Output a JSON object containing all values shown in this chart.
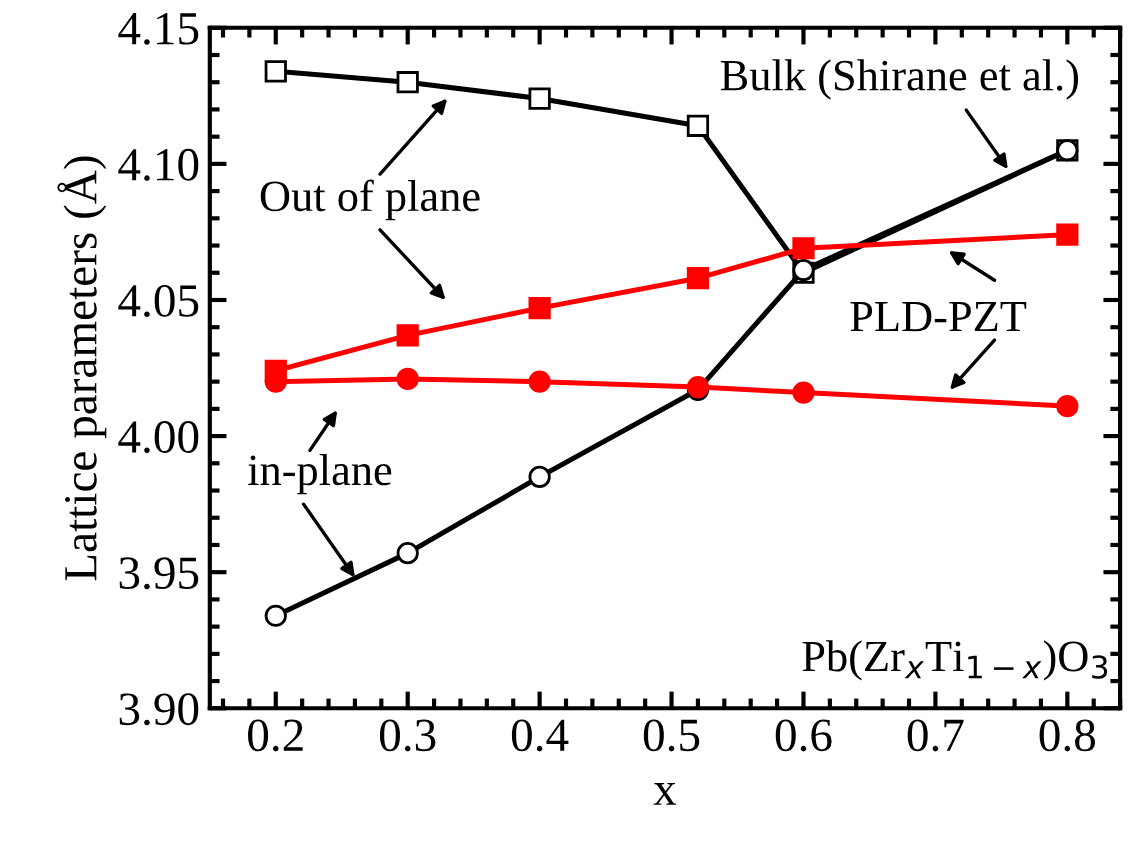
{
  "chart_data": {
    "type": "line",
    "xlabel": "x",
    "ylabel": "Lattice parameters (Å)",
    "x": [
      0.2,
      0.3,
      0.4,
      0.52,
      0.6,
      0.8
    ],
    "series": [
      {
        "color": "#000000",
        "marker": "square",
        "values": [
          4.134,
          4.13,
          4.124,
          4.114,
          4.06,
          4.105
        ]
      },
      {
        "color": "#000000",
        "marker": "circle",
        "values": [
          3.934,
          3.957,
          3.985,
          4.017,
          4.061,
          4.105
        ]
      },
      {
        "color": "#ff0000",
        "marker": "square",
        "values": [
          4.024,
          4.037,
          4.047,
          4.058,
          4.069,
          4.074
        ]
      },
      {
        "color": "#ff0000",
        "marker": "circle",
        "values": [
          4.02,
          4.021,
          4.02,
          4.018,
          4.016,
          4.011
        ]
      }
    ],
    "annotations": [
      {
        "text": "Out of plane",
        "x": 0.33,
        "y": 4.124
      },
      {
        "text": "in-plane",
        "x": 0.26,
        "y": 3.948
      },
      {
        "text": "Bulk (Shirane et al.)",
        "x": 0.755,
        "y": 4.098
      },
      {
        "text": "PLD-PZT",
        "x": 0.71,
        "y": 4.068
      },
      "Pb(Zr$_{x}$Ti$_{1−x}$)O$_{3}$"
    ],
    "xlim": [
      0.15,
      0.84
    ],
    "ylim": [
      3.9,
      4.15
    ],
    "xticks": [
      0.2,
      0.3,
      0.4,
      0.5,
      0.6,
      0.7,
      0.8
    ],
    "yticks": [
      {
        "value": 3.9,
        "label": "3.90"
      },
      {
        "value": 3.95,
        "label": "3.95"
      },
      {
        "value": 4.0,
        "label": "4.00"
      },
      {
        "value": 4.05,
        "label": "4.05"
      },
      {
        "value": 4.1,
        "label": "4.10"
      },
      {
        "value": 4.15,
        "label": "4.15"
      }
    ],
    "grid": false,
    "legend": false,
    "line_style": "solid"
  }
}
